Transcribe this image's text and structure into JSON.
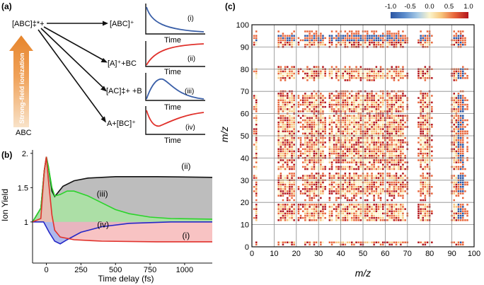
{
  "panel_a": {
    "label": "(a)",
    "parent_ion": "[ABC]‡*+",
    "neutral": "ABC",
    "arrow_label": "Strong-field ionization",
    "channels": [
      {
        "product": "[ABC]⁺",
        "roman": "(i)",
        "xlabel": "Time",
        "curve": "decay",
        "color": "#3a5fa8"
      },
      {
        "product": "[A]⁺+BC",
        "roman": "(ii)",
        "xlabel": "Time",
        "curve": "rise",
        "color": "#e0312b"
      },
      {
        "product": "[AC]‡+ +B",
        "roman": "(iii)",
        "xlabel": "Time",
        "curve": "transient",
        "color": "#3a5fa8"
      },
      {
        "product": "A+[BC]⁺",
        "roman": "(iv)",
        "xlabel": "Time",
        "curve": "dip",
        "color": "#e0312b"
      }
    ]
  },
  "panel_b": {
    "label": "(b)",
    "chart_data": {
      "type": "area",
      "xlabel": "Time delay (fs)",
      "ylabel": "Ion Yield",
      "xlim": [
        -100,
        1200
      ],
      "ylim": [
        0.4,
        2.05
      ],
      "xticks": [
        0,
        250,
        500,
        750,
        1000
      ],
      "yticks": [
        {
          "value": 2.0,
          "label": "2."
        },
        {
          "value": 1.5,
          "label": "1.5"
        },
        {
          "value": 1.0,
          "label": "1"
        }
      ],
      "baseline": 1.0,
      "series": [
        {
          "name": "(ii)",
          "line": "#111111",
          "fill": "#bdbdbd",
          "points": [
            [
              -100,
              1.0
            ],
            [
              -40,
              1.2
            ],
            [
              -15,
              1.75
            ],
            [
              0,
              1.95
            ],
            [
              15,
              1.8
            ],
            [
              40,
              1.45
            ],
            [
              60,
              1.37
            ],
            [
              80,
              1.42
            ],
            [
              120,
              1.52
            ],
            [
              200,
              1.6
            ],
            [
              300,
              1.64
            ],
            [
              500,
              1.66
            ],
            [
              800,
              1.66
            ],
            [
              1200,
              1.65
            ]
          ]
        },
        {
          "name": "(iii)",
          "line": "#2bd42b",
          "fill": "#a7e7a0",
          "points": [
            [
              -100,
              1.0
            ],
            [
              -40,
              1.2
            ],
            [
              -15,
              1.75
            ],
            [
              0,
              1.95
            ],
            [
              15,
              1.8
            ],
            [
              40,
              1.5
            ],
            [
              60,
              1.38
            ],
            [
              100,
              1.4
            ],
            [
              150,
              1.45
            ],
            [
              200,
              1.45
            ],
            [
              300,
              1.38
            ],
            [
              400,
              1.28
            ],
            [
              500,
              1.18
            ],
            [
              600,
              1.12
            ],
            [
              750,
              1.07
            ],
            [
              900,
              1.05
            ],
            [
              1200,
              1.04
            ]
          ]
        },
        {
          "name": "(iv)",
          "line": "#2427c7",
          "fill": "#9aa6e6",
          "points": [
            [
              -100,
              1.0
            ],
            [
              -20,
              1.0
            ],
            [
              20,
              0.85
            ],
            [
              60,
              0.72
            ],
            [
              100,
              0.68
            ],
            [
              150,
              0.74
            ],
            [
              250,
              0.85
            ],
            [
              400,
              0.93
            ],
            [
              600,
              0.98
            ],
            [
              900,
              1.0
            ],
            [
              1200,
              1.0
            ]
          ]
        },
        {
          "name": "(i)",
          "line": "#e0312b",
          "fill": "#f6b4b4",
          "points": [
            [
              -100,
              1.0
            ],
            [
              -40,
              1.05
            ],
            [
              -15,
              1.75
            ],
            [
              0,
              1.95
            ],
            [
              15,
              1.6
            ],
            [
              40,
              1.1
            ],
            [
              60,
              0.88
            ],
            [
              100,
              0.78
            ],
            [
              200,
              0.74
            ],
            [
              400,
              0.72
            ],
            [
              800,
              0.71
            ],
            [
              1200,
              0.71
            ]
          ]
        }
      ],
      "labels": [
        {
          "text": "(ii)",
          "x": 1010,
          "y": 1.77
        },
        {
          "text": "(iii)",
          "x": 405,
          "y": 1.37
        },
        {
          "text": "(iv)",
          "x": 410,
          "y": 0.92
        },
        {
          "text": "(i)",
          "x": 1010,
          "y": 0.76
        }
      ]
    }
  },
  "panel_c": {
    "label": "(c)",
    "chart_data": {
      "type": "heatmap",
      "xlabel": "m/z",
      "ylabel": "m/z",
      "xlim": [
        0,
        100
      ],
      "ylim": [
        0,
        100
      ],
      "ticks": [
        0,
        10,
        20,
        30,
        40,
        50,
        60,
        70,
        80,
        90,
        100
      ],
      "colorbar": {
        "min": -1.0,
        "max": 1.0,
        "ticks": [
          "-1.0",
          "-0.5",
          "0.0",
          "0.5",
          "1.0"
        ]
      },
      "grid": true,
      "active_mz": [
        2,
        12,
        13,
        14,
        15,
        16,
        17,
        18,
        19,
        24,
        25,
        26,
        27,
        28,
        29,
        30,
        31,
        32,
        35,
        36,
        38,
        39,
        40,
        41,
        42,
        43,
        44,
        45,
        46,
        47,
        48,
        49,
        50,
        51,
        52,
        53,
        54,
        55,
        56,
        57,
        58,
        59,
        61,
        62,
        63,
        64,
        65,
        66,
        67,
        68,
        76,
        77,
        78,
        79,
        80,
        91,
        92,
        93,
        94,
        95
      ],
      "weak_mz": [
        1,
        21,
        22,
        23,
        33,
        37,
        60,
        69,
        70,
        75,
        81,
        90,
        96,
        97
      ]
    }
  }
}
